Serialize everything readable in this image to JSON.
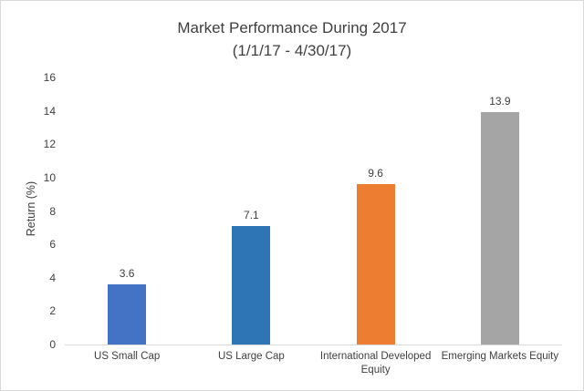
{
  "chart": {
    "title": "Market Performance During 2017",
    "subtitle": "(1/1/17 - 4/30/17)",
    "ylabel": "Return (%)"
  },
  "chart_data": {
    "type": "bar",
    "title": "Market Performance During 2017",
    "subtitle": "(1/1/17 - 4/30/17)",
    "categories": [
      "US Small Cap",
      "US Large Cap",
      "International Developed Equity",
      "Emerging Markets Equity"
    ],
    "values": [
      3.6,
      7.1,
      9.6,
      13.9
    ],
    "data_labels": [
      "3.6",
      "7.1",
      "9.6",
      "13.9"
    ],
    "bar_colors": [
      "#4472c4",
      "#2e75b6",
      "#ed7d31",
      "#a5a5a5"
    ],
    "xlabel": "",
    "ylabel": "Return (%)",
    "ylim": [
      0,
      16
    ],
    "yticks": [
      0,
      2,
      4,
      6,
      8,
      10,
      12,
      14,
      16
    ],
    "grid": false,
    "legend": "none",
    "axis_line_color": "#d9d9d9",
    "text_color": "#404040"
  }
}
